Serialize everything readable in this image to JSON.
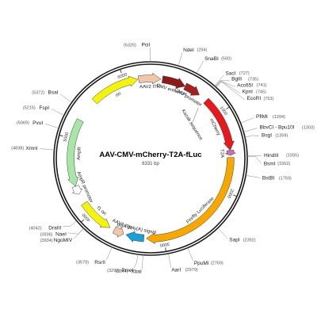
{
  "map": {
    "name": "AAV-CMV-mCherry-T2A-fLuc",
    "length_text": "6331 bp",
    "length": 6331
  },
  "ticks": [
    {
      "pos": 1000,
      "label": "1000"
    },
    {
      "pos": 2000,
      "label": "2000"
    },
    {
      "pos": 3000,
      "label": "3000"
    },
    {
      "pos": 4000,
      "label": "4000"
    },
    {
      "pos": 5000,
      "label": "5000"
    },
    {
      "pos": 6000,
      "label": "6000"
    }
  ],
  "sites": [
    {
      "name": "PciI",
      "pos": 6326,
      "pos_text": "(6326)"
    },
    {
      "name": "NdeI",
      "pos": 294,
      "pos_text": "(294)"
    },
    {
      "name": "SnaBI",
      "pos": 500,
      "pos_text": "(500)"
    },
    {
      "name": "SacI",
      "pos": 727,
      "pos_text": "(727)"
    },
    {
      "name": "BglII",
      "pos": 735,
      "pos_text": "(735)"
    },
    {
      "name": "Acc65I",
      "pos": 741,
      "pos_text": "(741)"
    },
    {
      "name": "KpnI",
      "pos": 745,
      "pos_text": "(745)"
    },
    {
      "name": "EcoRI",
      "pos": 753,
      "pos_text": "(753)"
    },
    {
      "name": "PflMI",
      "pos": 1204,
      "pos_text": "(1204)"
    },
    {
      "name": "BbvCI - Bpu10I",
      "pos": 1303,
      "pos_text": "(1303)"
    },
    {
      "name": "BsgI",
      "pos": 1359,
      "pos_text": "(1359)"
    },
    {
      "name": "HindIII",
      "pos": 1555,
      "pos_text": "(1555)"
    },
    {
      "name": "BsmI",
      "pos": 1562,
      "pos_text": "(1562)"
    },
    {
      "name": "BstBI",
      "pos": 1759,
      "pos_text": "(1759)"
    },
    {
      "name": "SapI",
      "pos": 2392,
      "pos_text": "(2392)"
    },
    {
      "name": "PpuMI",
      "pos": 2769,
      "pos_text": "(2769)"
    },
    {
      "name": "AarI",
      "pos": 2979,
      "pos_text": "(2979)"
    },
    {
      "name": "XbaI",
      "pos": 3244,
      "pos_text": "(3244)"
    },
    {
      "name": "PmeI",
      "pos": 3299,
      "pos_text": "(3299)"
    },
    {
      "name": "RsrII",
      "pos": 3579,
      "pos_text": "(3579)"
    },
    {
      "name": "NgoMIV",
      "pos": 3934,
      "pos_text": "(3934)"
    },
    {
      "name": "NaeI",
      "pos": 3936,
      "pos_text": "(3936)"
    },
    {
      "name": "DraIII",
      "pos": 4042,
      "pos_text": "(4042)"
    },
    {
      "name": "XmnI",
      "pos": 4838,
      "pos_text": "(4838)"
    },
    {
      "name": "PvuI",
      "pos": 5069,
      "pos_text": "(5069)"
    },
    {
      "name": "FspI",
      "pos": 5215,
      "pos_text": "(5215)"
    },
    {
      "name": "BsaI",
      "pos": 5372,
      "pos_text": "(5372)"
    }
  ],
  "features": [
    {
      "name": "ori",
      "start": 5550,
      "end": 6170,
      "dir": 1,
      "color": "#f3f30f"
    },
    {
      "name": "AAV2 ITR",
      "start": 6180,
      "end": 130,
      "dir": 1,
      "color": "#f4c6a8"
    },
    {
      "name": "CMV enhancer",
      "start": 150,
      "end": 450,
      "dir": 1,
      "color": "#8b1a1a"
    },
    {
      "name": "CMV promoter",
      "start": 450,
      "end": 660,
      "dir": 1,
      "color": "#a52020"
    },
    {
      "name": "mCherry",
      "start": 770,
      "end": 1480,
      "dir": 1,
      "color": "#e41a1c"
    },
    {
      "name": "T2A",
      "start": 1480,
      "end": 1545,
      "dir": 1,
      "color": "#c86fb8"
    },
    {
      "name": "Firefly Luciferase",
      "start": 1570,
      "end": 3220,
      "dir": 1,
      "color": "#f7a800"
    },
    {
      "name": "bGH poly(A) signal",
      "start": 3250,
      "end": 3480,
      "dir": 1,
      "color": "#1aa0d8"
    },
    {
      "name": "AAV2 ITR",
      "start": 3510,
      "end": 3640,
      "dir": -1,
      "color": "#f4c6a8"
    },
    {
      "name": "f1 ori",
      "start": 3700,
      "end": 4150,
      "dir": -1,
      "color": "#f3f30f"
    },
    {
      "name": "AmpR promoter",
      "start": 4280,
      "end": 4390,
      "dir": -1,
      "color": "#ffffff"
    },
    {
      "name": "AmpR",
      "start": 4390,
      "end": 5250,
      "dir": -1,
      "color": "#a8e6a8"
    }
  ],
  "annotations": [
    {
      "name": "Kozak sequence"
    }
  ]
}
